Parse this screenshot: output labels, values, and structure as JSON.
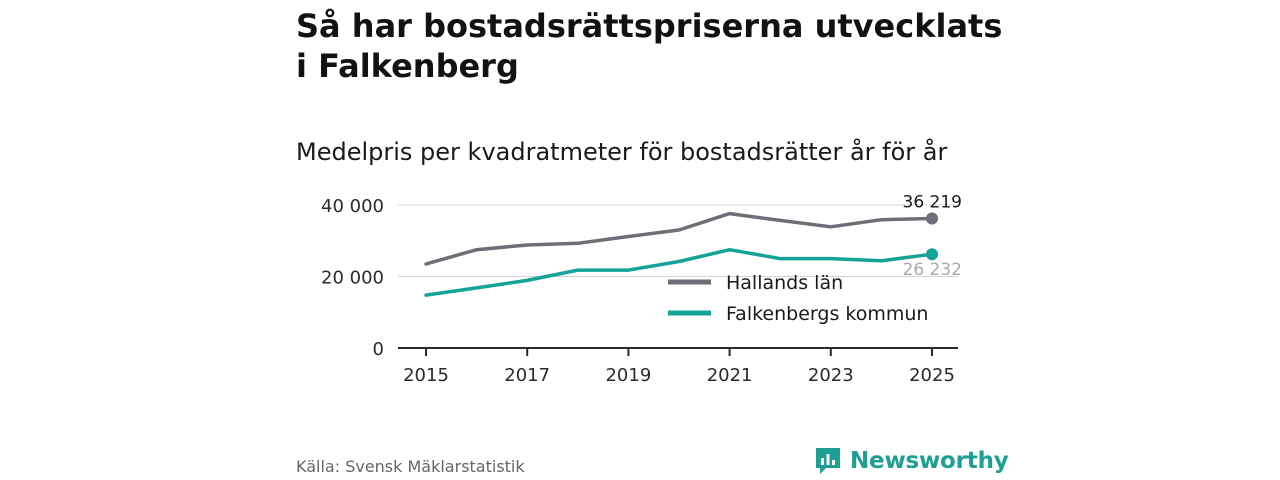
{
  "title": "Så har bostadsrättspriserna utvecklats i Falkenberg",
  "subtitle": "Medelpris per kvadratmeter för bostadsrätter år för år",
  "source": "Källa: Svensk Mäklarstatistik",
  "brand": {
    "name": "Newsworthy",
    "icon": "newsworthy-logo-icon"
  },
  "colors": {
    "hallands": "#6e6e76",
    "falkenberg": "#13a497",
    "brand": "#1f9e93",
    "grid": "#d6d6d6",
    "axis": "#2a2a2a"
  },
  "chart_data": {
    "type": "line",
    "title": "Medelpris per kvadratmeter för bostadsrätter år för år",
    "xlabel": "",
    "ylabel": "",
    "x": [
      2015,
      2016,
      2017,
      2018,
      2019,
      2020,
      2021,
      2022,
      2023,
      2024,
      2025
    ],
    "xlim": [
      2015,
      2025
    ],
    "ylim": [
      0,
      40000
    ],
    "yticks": [
      0,
      20000,
      40000
    ],
    "ytick_labels": [
      "0",
      "20 000",
      "40 000"
    ],
    "xticks": [
      2015,
      2017,
      2019,
      2021,
      2023,
      2025
    ],
    "xtick_labels": [
      "2015",
      "2017",
      "2019",
      "2021",
      "2023",
      "2025"
    ],
    "grid": true,
    "legend_position": "bottom-right",
    "series": [
      {
        "name": "Hallands län",
        "color_key": "hallands",
        "values": [
          23500,
          27500,
          28800,
          29300,
          31200,
          33000,
          37600,
          35700,
          33900,
          35900,
          36219
        ],
        "end_label": "36 219"
      },
      {
        "name": "Falkenbergs kommun",
        "color_key": "falkenberg",
        "values": [
          14800,
          16800,
          18900,
          21800,
          21800,
          24200,
          27500,
          25000,
          25000,
          24400,
          26232
        ],
        "end_label": "26 232"
      }
    ]
  }
}
